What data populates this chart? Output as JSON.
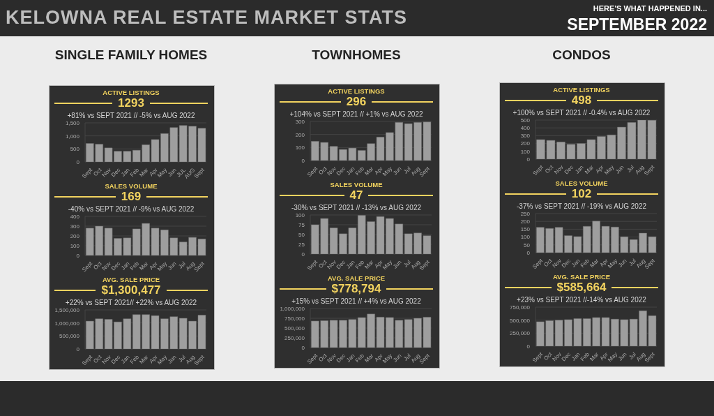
{
  "chart_data": [
    {
      "type": "other",
      "title": "KELOWNA REAL ESTATE MARKET STATS",
      "subtitle": "SEPTEMBER 2022",
      "annotations": [
        "HERE'S WHAT HAPPENED IN...",
        "SINGLE FAMILY HOMES",
        "TOWNHOMES",
        "CONDOS"
      ]
    },
    {
      "type": "bar",
      "title": "ACTIVE LISTINGS",
      "subtitle": "1293",
      "annotations": [
        "+81% vs SEPT 2021 // -5% vs AUG 2022"
      ],
      "categories": [
        "Sept",
        "Oct",
        "Nov",
        "Dec",
        "Jan",
        "Feb",
        "Mar",
        "Apr",
        "May",
        "Jun",
        "JUL",
        "AUG",
        "Sept"
      ],
      "values": [
        710,
        680,
        540,
        410,
        410,
        450,
        660,
        860,
        1090,
        1320,
        1400,
        1370,
        1293
      ],
      "color": "#9e9e9e",
      "ylim": [
        0,
        1500
      ],
      "yticks": [
        0,
        500,
        {
          "value": 1000,
          "label": "1,000"
        },
        {
          "value": 1500,
          "label": "1,500"
        }
      ],
      "grid": "y"
    },
    {
      "type": "bar",
      "title": "SALES VOLUME",
      "subtitle": "169",
      "annotations": [
        "-40% vs SEPT 2021 // -9% vs AUG 2022"
      ],
      "categories": [
        "Sept",
        "Oct",
        "Nov",
        "Dec",
        "Jan",
        "Feb",
        "Mar",
        "Apr",
        "May",
        "Jun",
        "Jul",
        "Aug",
        "Sept"
      ],
      "values": [
        280,
        300,
        280,
        175,
        180,
        272,
        328,
        280,
        262,
        180,
        138,
        185,
        169
      ],
      "color": "#9e9e9e",
      "ylim": [
        0,
        400
      ],
      "yticks": [
        0,
        100,
        200,
        300,
        400
      ],
      "grid": "y"
    },
    {
      "type": "bar",
      "title": "AVG. SALE PRICE",
      "subtitle": "$1,300,477",
      "annotations": [
        "+22% vs SEPT 2021// +22% vs AUG 2022"
      ],
      "categories": [
        "Sept",
        "Oct",
        "Nov",
        "Dec",
        "Jan",
        "Feb",
        "Mar",
        "Apr",
        "May",
        "Jun",
        "Jul",
        "Aug",
        "Sept"
      ],
      "values": [
        1070000,
        1160000,
        1140000,
        1040000,
        1160000,
        1320000,
        1320000,
        1280000,
        1160000,
        1240000,
        1180000,
        1070000,
        1300477
      ],
      "color": "#9e9e9e",
      "ylim": [
        0,
        1500000
      ],
      "yticks": [
        0,
        {
          "value": 500000,
          "label": "500,000"
        },
        {
          "value": 1000000,
          "label": "1,000,000"
        },
        {
          "value": 1500000,
          "label": "1,500,000"
        }
      ],
      "grid": "y"
    },
    {
      "type": "bar",
      "title": "ACTIVE LISTINGS",
      "subtitle": "296",
      "annotations": [
        "+104% vs SEPT 2021 // +1% vs AUG 2022"
      ],
      "categories": [
        "Sept",
        "Oct",
        "Nov",
        "Dec",
        "Jan",
        "Feb",
        "Mar",
        "Apr",
        "May",
        "Jun",
        "Jul",
        "Aug",
        "Sept"
      ],
      "values": [
        148,
        139,
        109,
        85,
        96,
        78,
        130,
        180,
        215,
        293,
        283,
        293,
        296
      ],
      "color": "#9e9e9e",
      "ylim": [
        0,
        300
      ],
      "yticks": [
        0,
        100,
        200,
        300
      ],
      "grid": "y"
    },
    {
      "type": "bar",
      "title": "SALES VOLUME",
      "subtitle": "47",
      "annotations": [
        "-30% vs SEPT 2021 // -13% vs AUG 2022"
      ],
      "categories": [
        "Sept",
        "Oct",
        "Nov",
        "Dec",
        "Jan",
        "Feb",
        "Mar",
        "Apr",
        "May",
        "Jun",
        "Jul",
        "Aug",
        "Sept"
      ],
      "values": [
        75,
        91,
        67,
        52,
        67,
        99,
        83,
        96,
        91,
        77,
        52,
        54,
        47
      ],
      "color": "#9e9e9e",
      "ylim": [
        0,
        100
      ],
      "yticks": [
        0,
        25,
        50,
        75,
        100
      ],
      "grid": "y"
    },
    {
      "type": "bar",
      "title": "AVG. SALE PRICE",
      "subtitle": "$778,794",
      "annotations": [
        "+15% vs SEPT 2021 // +4% vs AUG 2022"
      ],
      "categories": [
        "Sept",
        "Oct",
        "Nov",
        "Dec",
        "Jan",
        "Feb",
        "Mar",
        "Apr",
        "May",
        "Jun",
        "Jul",
        "Aug",
        "Sept"
      ],
      "values": [
        680000,
        690000,
        700000,
        700000,
        720000,
        770000,
        860000,
        780000,
        770000,
        700000,
        720000,
        750000,
        778794
      ],
      "color": "#9e9e9e",
      "ylim": [
        0,
        1000000
      ],
      "yticks": [
        0,
        {
          "value": 250000,
          "label": "250,000"
        },
        {
          "value": 500000,
          "label": "500,000"
        },
        {
          "value": 750000,
          "label": "750,000"
        },
        {
          "value": 1000000,
          "label": "1,000,000"
        }
      ],
      "grid": "y"
    },
    {
      "type": "bar",
      "title": "ACTIVE LISTINGS",
      "subtitle": "498",
      "annotations": [
        "+100% vs SEPT 2021 // -0.4% vs AUG 2022"
      ],
      "categories": [
        "Sept",
        "Oct",
        "Nov",
        "Dec",
        "Jan",
        "Mar",
        "Apr",
        "May",
        "Jun",
        "Jul",
        "Aug",
        "Sept"
      ],
      "values": [
        250,
        240,
        220,
        190,
        200,
        250,
        290,
        310,
        410,
        470,
        500,
        498
      ],
      "color": "#9e9e9e",
      "ylim": [
        0,
        500
      ],
      "yticks": [
        0,
        100,
        200,
        300,
        400,
        500
      ],
      "grid": "y"
    },
    {
      "type": "bar",
      "title": "SALES VOLUME",
      "subtitle": "102",
      "annotations": [
        "-37% vs SEPT 2021 // -19% vs AUG 2022"
      ],
      "categories": [
        "Sept",
        "Oct",
        "Nov",
        "Dec",
        "Jan",
        "Feb",
        "Mar",
        "Apr",
        "May",
        "Jun",
        "Jul",
        "Aug",
        "Sept"
      ],
      "values": [
        162,
        155,
        162,
        109,
        103,
        169,
        202,
        169,
        164,
        102,
        84,
        125,
        102
      ],
      "color": "#9e9e9e",
      "ylim": [
        0,
        250
      ],
      "yticks": [
        0,
        50,
        100,
        150,
        200,
        250
      ],
      "grid": "y"
    },
    {
      "type": "bar",
      "title": "AVG. SALE PRICE",
      "subtitle": "$585,664",
      "annotations": [
        "+23% vs SEPT 2021 //-14% vs AUG 2022"
      ],
      "categories": [
        "Sept",
        "Oct",
        "Nov",
        "Dec",
        "Jan",
        "Feb",
        "Mar",
        "Apr",
        "May",
        "Jun",
        "Jul",
        "Aug",
        "Sept"
      ],
      "values": [
        470000,
        490000,
        500000,
        510000,
        530000,
        530000,
        550000,
        550000,
        520000,
        510000,
        520000,
        680000,
        585664
      ],
      "color": "#9e9e9e",
      "ylim": [
        0,
        750000
      ],
      "yticks": [
        0,
        {
          "value": 250000,
          "label": "250,000"
        },
        {
          "value": 500000,
          "label": "500,000"
        },
        {
          "value": 750000,
          "label": "750,000"
        }
      ],
      "grid": "y"
    }
  ]
}
